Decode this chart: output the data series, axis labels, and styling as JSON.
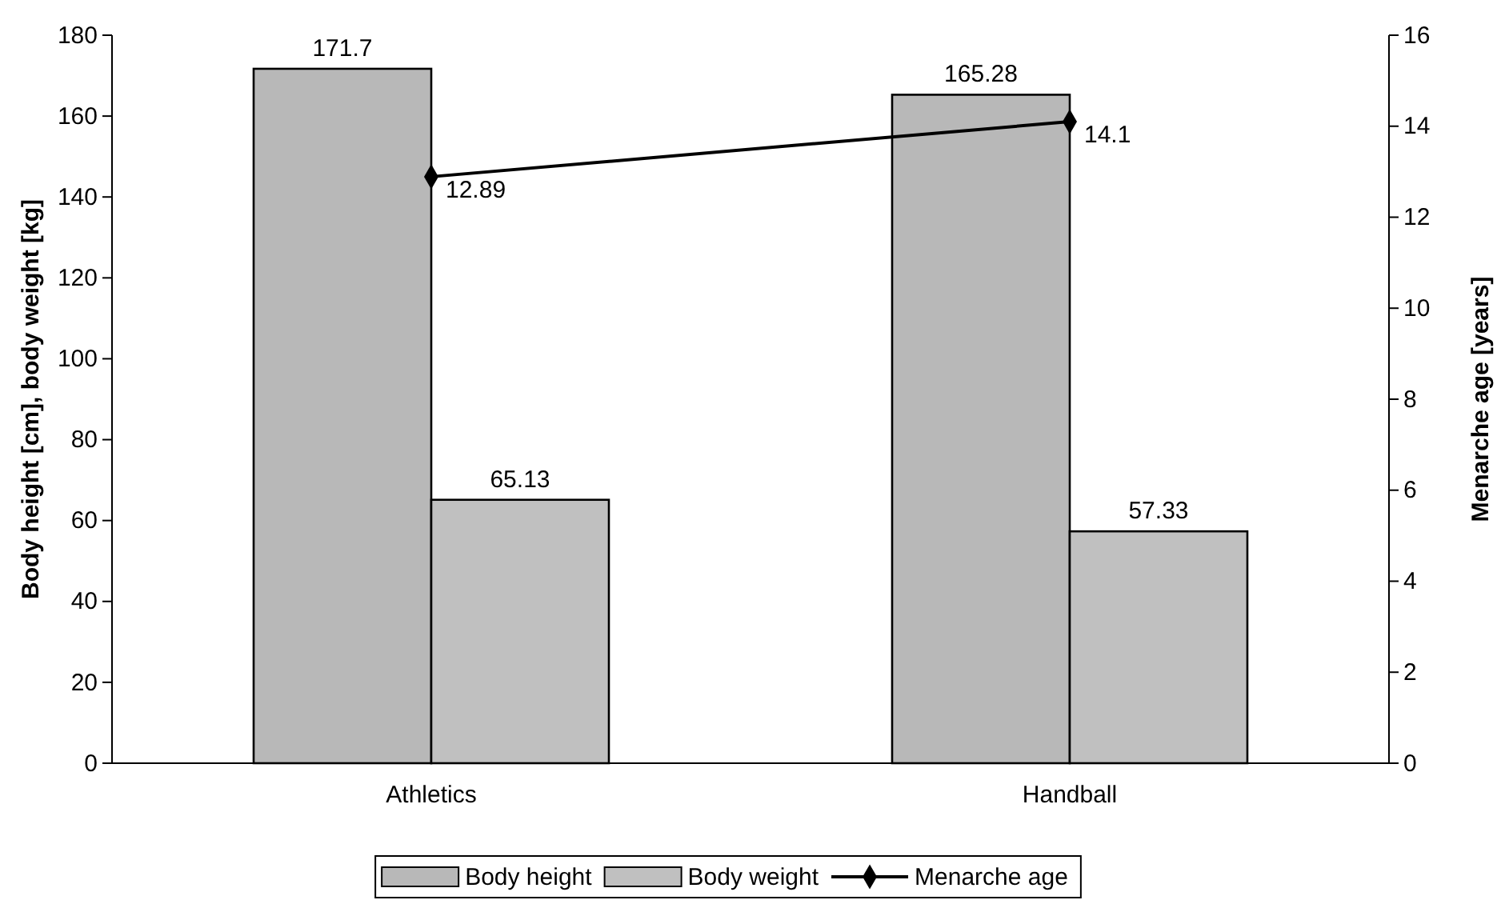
{
  "chart_data": {
    "type": "bar",
    "categories": [
      "Athletics",
      "Handball"
    ],
    "ylabel": "Body height [cm], body weight [kg]",
    "y2label": "Menarche age [years]",
    "ylim": [
      0,
      180
    ],
    "yticks": [
      0,
      20,
      40,
      60,
      80,
      100,
      120,
      140,
      160,
      180
    ],
    "y2lim": [
      0,
      16
    ],
    "y2ticks": [
      0,
      2,
      4,
      6,
      8,
      10,
      12,
      14,
      16
    ],
    "series": [
      {
        "name": "Body height",
        "color": "#b8b8b8",
        "values": [
          171.7,
          165.28
        ]
      },
      {
        "name": "Body weight",
        "color": "#c0c0c0",
        "values": [
          65.13,
          57.33
        ]
      },
      {
        "name": "Menarche age",
        "type": "line",
        "axis": "y2",
        "color": "#000000",
        "marker": "diamond",
        "values": [
          12.89,
          14.1
        ]
      }
    ],
    "data_labels": true,
    "legend": "bottom",
    "grid": false
  }
}
